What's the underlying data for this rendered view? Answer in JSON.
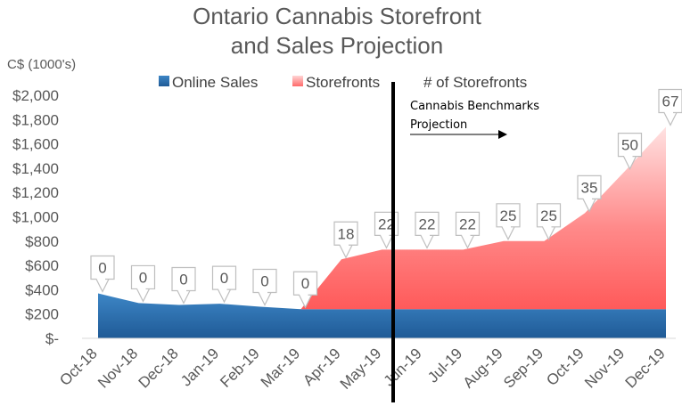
{
  "chart_data": {
    "type": "area",
    "title_line1": "Ontario Cannabis Storefront",
    "title_line2": "and Sales Projection",
    "ylabel": "C$ (1000's)",
    "ylim": [
      0,
      2000
    ],
    "ytick_labels": [
      "$-",
      "$200",
      "$400",
      "$600",
      "$800",
      "$1,000",
      "$1,200",
      "$1,400",
      "$1,600",
      "$1,800",
      "$2,000"
    ],
    "categories": [
      "Oct-18",
      "Nov-18",
      "Dec-18",
      "Jan-19",
      "Feb-19",
      "Mar-19",
      "Apr-19",
      "May-19",
      "Jun-19",
      "Jul-19",
      "Aug-19",
      "Sep-19",
      "Oct-19",
      "Nov-19",
      "Dec-19"
    ],
    "series": [
      {
        "name": "Online Sales",
        "values": [
          370,
          290,
          275,
          285,
          260,
          240,
          240,
          240,
          240,
          240,
          240,
          240,
          240,
          240,
          240
        ],
        "color": "#2e75b6"
      },
      {
        "name": "Storefronts",
        "values": [
          0,
          0,
          0,
          0,
          0,
          0,
          410,
          490,
          490,
          490,
          560,
          560,
          790,
          1140,
          1500
        ],
        "color": "#ff6666"
      },
      {
        "name": "# of Storefronts",
        "values": [
          0,
          0,
          0,
          0,
          0,
          0,
          18,
          22,
          22,
          22,
          25,
          25,
          35,
          50,
          67
        ]
      }
    ],
    "legend_position": "top",
    "grid": false,
    "annotation": {
      "divider_after": "May-19",
      "line1": "Cannabis Benchmarks",
      "line2": "Projection"
    }
  }
}
